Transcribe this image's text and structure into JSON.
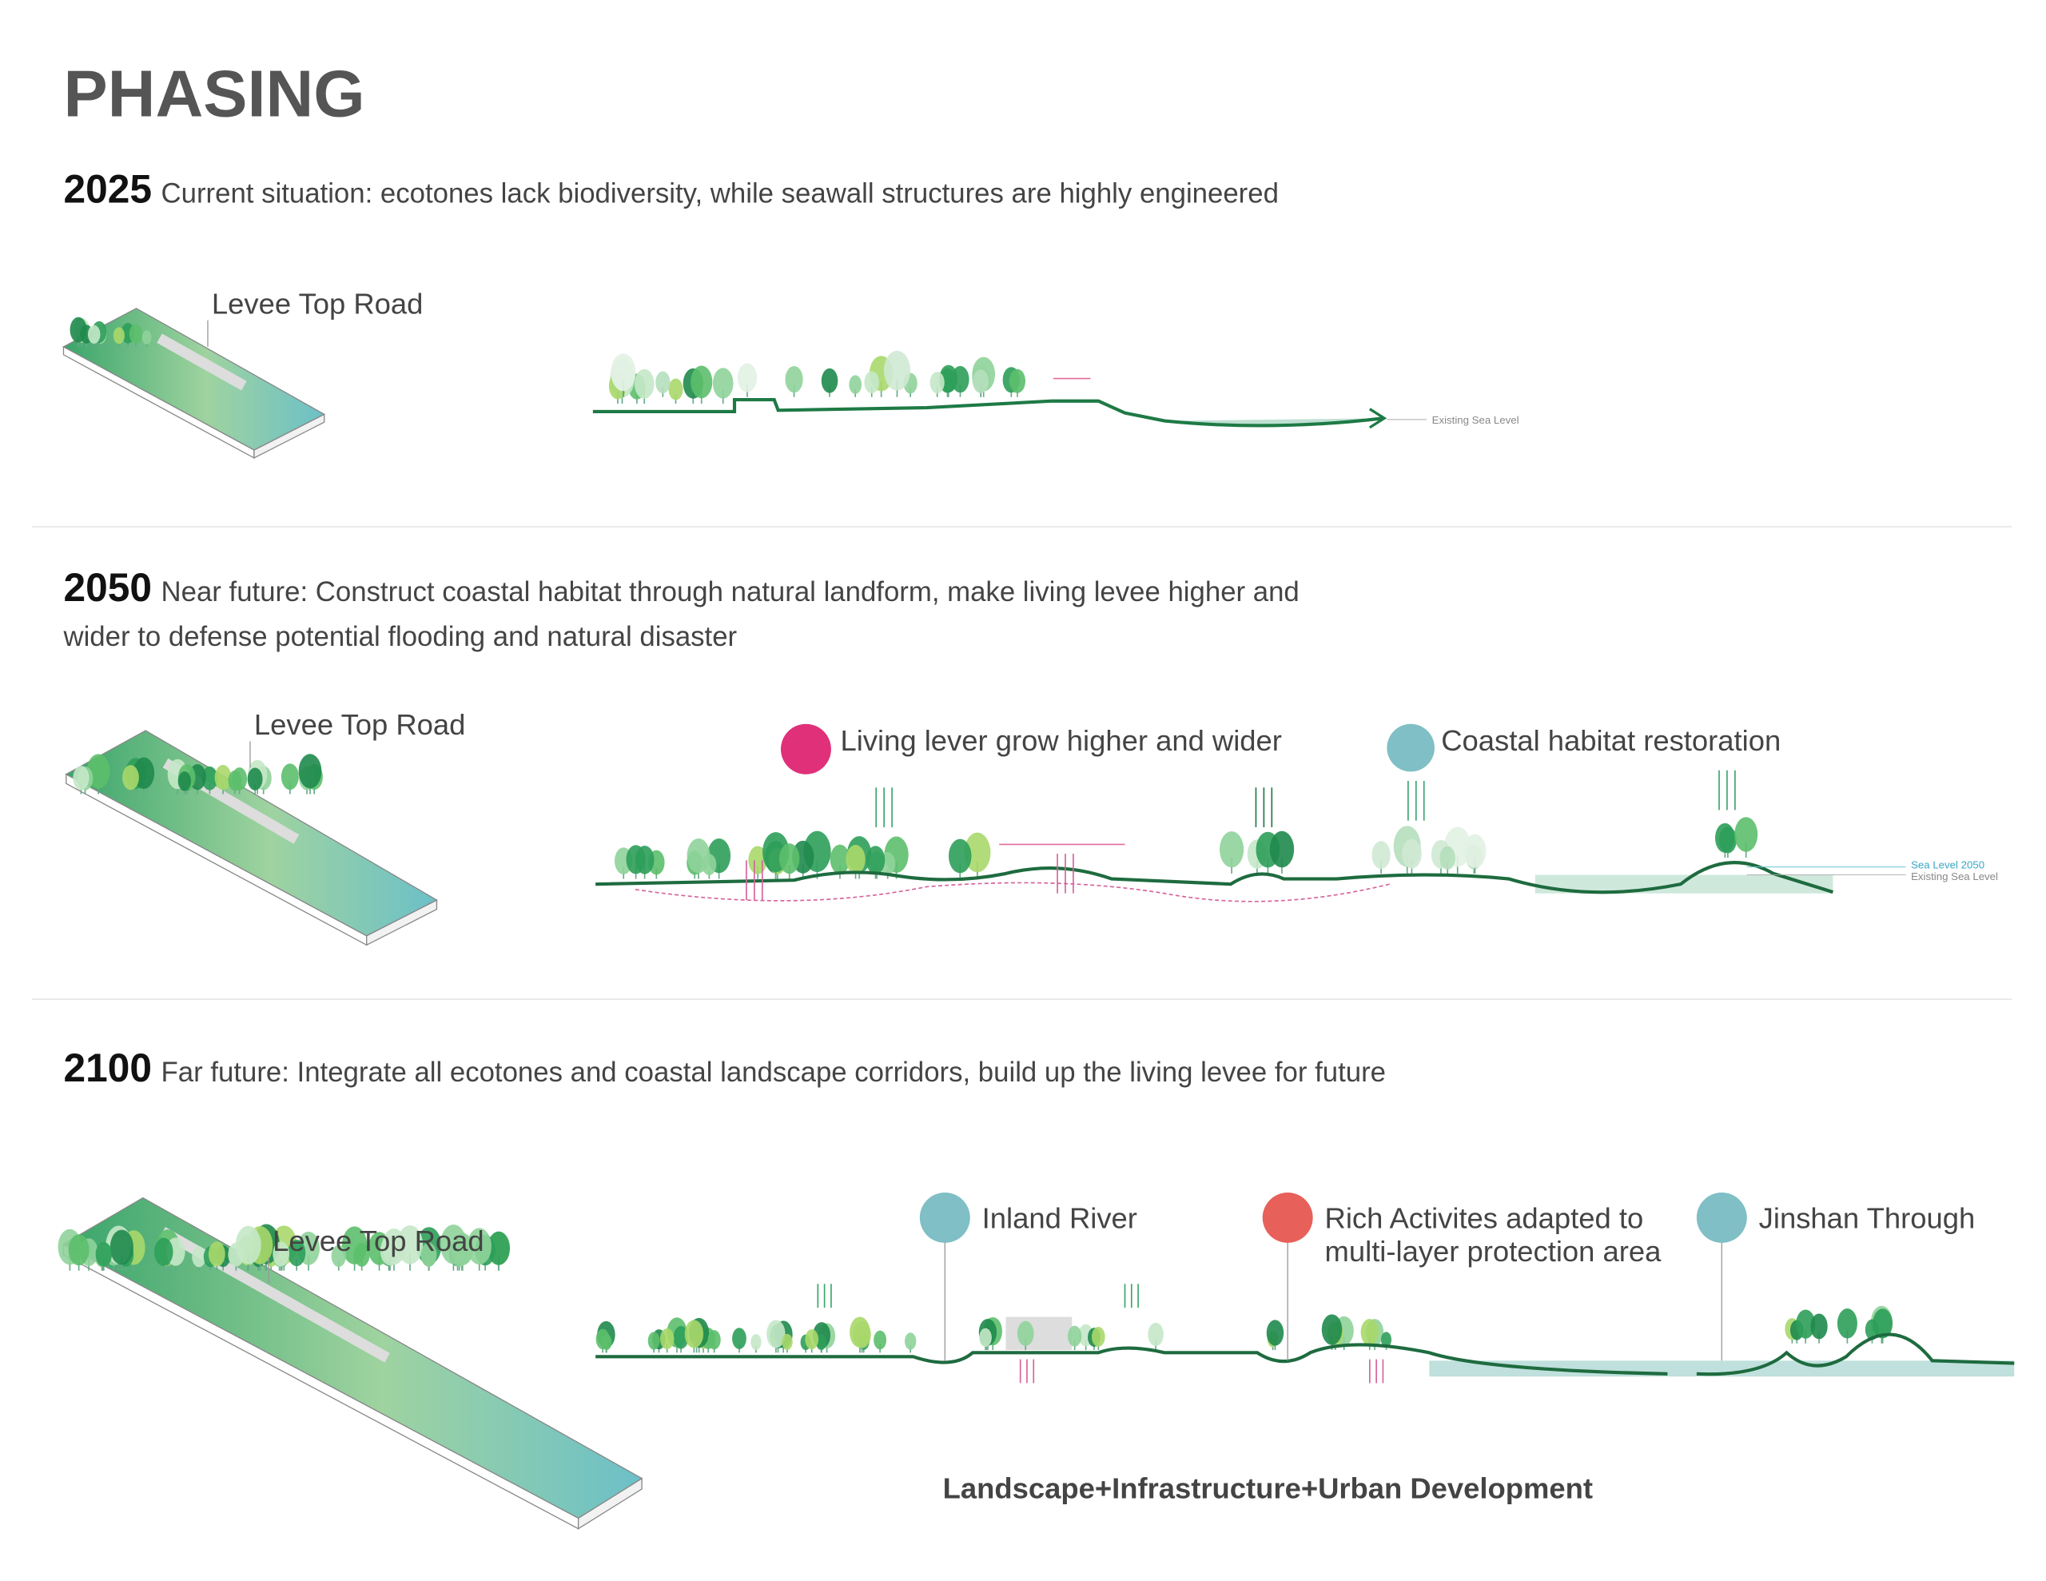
{
  "title": "PHASING",
  "phases": [
    {
      "year": "2025",
      "description": [
        "Current situation: ecotones lack biodiversity, while seawall structures are highly engineered"
      ],
      "levee_label": "Levee Top Road",
      "sea_levels": [
        "Existing Sea Level"
      ]
    },
    {
      "year": "2050",
      "description": [
        "Near future: Construct coastal habitat through natural landform, make living levee higher and",
        "wider to defense potential flooding and natural disaster"
      ],
      "levee_label": "Levee Top Road",
      "annotations": [
        {
          "label": [
            "Living lever grow higher and wider"
          ]
        },
        {
          "label": [
            "Coastal habitat restoration"
          ]
        }
      ],
      "sea_levels": [
        "Sea Level 2050",
        "Existing Sea Level"
      ]
    },
    {
      "year": "2100",
      "description": [
        "Far future: Integrate all ecotones and coastal landscape corridors, build up the living levee for future"
      ],
      "levee_label": "Levee Top Road",
      "annotations": [
        {
          "label": [
            "Inland River"
          ]
        },
        {
          "label": [
            "Rich Activites adapted to",
            "multi-layer protection area"
          ]
        },
        {
          "label": [
            "Jinshan Through"
          ]
        }
      ]
    }
  ],
  "footer": "Landscape+Infrastructure+Urban Development"
}
